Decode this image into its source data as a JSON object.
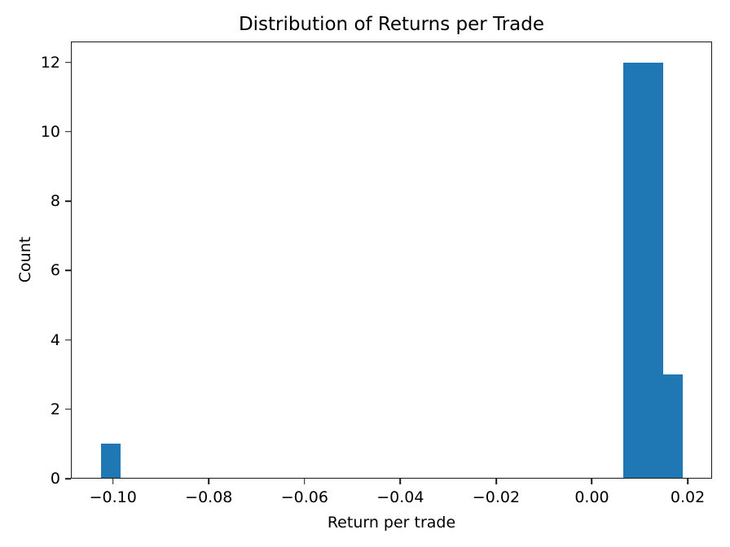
{
  "chart_data": {
    "type": "bar",
    "variant": "histogram",
    "title": "Distribution of Returns per Trade",
    "xlabel": "Return per trade",
    "ylabel": "Count",
    "xlim": [
      -0.1088,
      0.0251
    ],
    "ylim": [
      0,
      12.6
    ],
    "grid": false,
    "legend_position": "none",
    "bar_color": "#1f77b4",
    "axis_color": "#1a1a1a",
    "background_color": "#ffffff",
    "xticks": [
      {
        "value": -0.1,
        "label": "−0.10"
      },
      {
        "value": -0.08,
        "label": "−0.08"
      },
      {
        "value": -0.06,
        "label": "−0.06"
      },
      {
        "value": -0.04,
        "label": "−0.04"
      },
      {
        "value": -0.02,
        "label": "−0.02"
      },
      {
        "value": 0.0,
        "label": "0.00"
      },
      {
        "value": 0.02,
        "label": "0.02"
      }
    ],
    "yticks": [
      {
        "value": 0,
        "label": "0"
      },
      {
        "value": 2,
        "label": "2"
      },
      {
        "value": 4,
        "label": "4"
      },
      {
        "value": 6,
        "label": "6"
      },
      {
        "value": 8,
        "label": "8"
      },
      {
        "value": 10,
        "label": "10"
      },
      {
        "value": 12,
        "label": "12"
      }
    ],
    "bins": [
      {
        "x0": -0.1027,
        "x1": -0.0985,
        "count": 1
      },
      {
        "x0": 0.0067,
        "x1": 0.0108,
        "count": 12
      },
      {
        "x0": 0.0108,
        "x1": 0.015,
        "count": 12
      },
      {
        "x0": 0.015,
        "x1": 0.0191,
        "count": 3
      }
    ]
  }
}
